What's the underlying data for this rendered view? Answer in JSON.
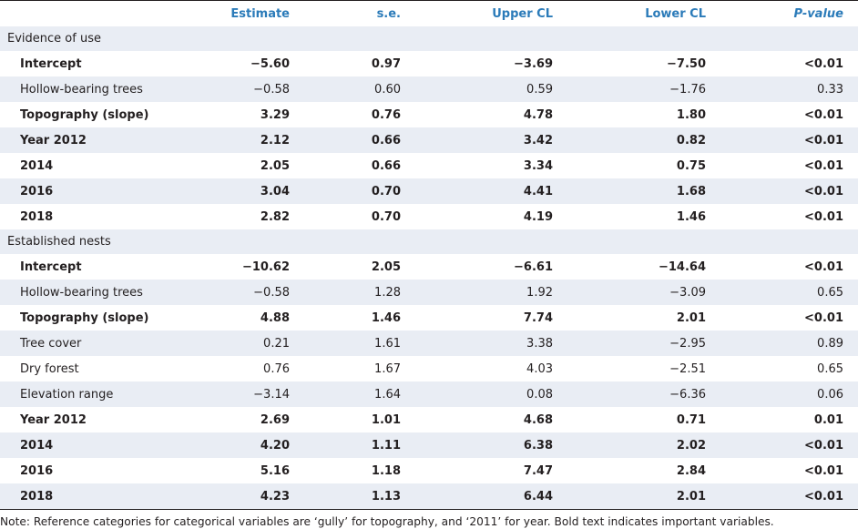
{
  "table": {
    "headers": [
      "",
      "Estimate",
      "s.e.",
      "Upper CL",
      "Lower CL",
      "P-value"
    ],
    "rows": [
      {
        "type": "section",
        "label": "Evidence of use"
      },
      {
        "type": "data",
        "bold": true,
        "shade": false,
        "cells": [
          "Intercept",
          "−5.60",
          "0.97",
          "−3.69",
          "−7.50",
          "<0.01"
        ]
      },
      {
        "type": "data",
        "bold": false,
        "shade": true,
        "cells": [
          "Hollow-bearing trees",
          "−0.58",
          "0.60",
          "0.59",
          "−1.76",
          "0.33"
        ]
      },
      {
        "type": "data",
        "bold": true,
        "shade": false,
        "cells": [
          "Topography (slope)",
          "3.29",
          "0.76",
          "4.78",
          "1.80",
          "<0.01"
        ]
      },
      {
        "type": "data",
        "bold": true,
        "shade": true,
        "cells": [
          "Year 2012",
          "2.12",
          "0.66",
          "3.42",
          "0.82",
          "<0.01"
        ]
      },
      {
        "type": "data",
        "bold": true,
        "shade": false,
        "cells": [
          "2014",
          "2.05",
          "0.66",
          "3.34",
          "0.75",
          "<0.01"
        ]
      },
      {
        "type": "data",
        "bold": true,
        "shade": true,
        "cells": [
          "2016",
          "3.04",
          "0.70",
          "4.41",
          "1.68",
          "<0.01"
        ]
      },
      {
        "type": "data",
        "bold": true,
        "shade": false,
        "cells": [
          "2018",
          "2.82",
          "0.70",
          "4.19",
          "1.46",
          "<0.01"
        ]
      },
      {
        "type": "section",
        "label": "Established nests"
      },
      {
        "type": "data",
        "bold": true,
        "shade": false,
        "cells": [
          "Intercept",
          "−10.62",
          "2.05",
          "−6.61",
          "−14.64",
          "<0.01"
        ]
      },
      {
        "type": "data",
        "bold": false,
        "shade": true,
        "cells": [
          "Hollow-bearing trees",
          "−0.58",
          "1.28",
          "1.92",
          "−3.09",
          "0.65"
        ]
      },
      {
        "type": "data",
        "bold": true,
        "shade": false,
        "cells": [
          "Topography (slope)",
          "4.88",
          "1.46",
          "7.74",
          "2.01",
          "<0.01"
        ]
      },
      {
        "type": "data",
        "bold": false,
        "shade": true,
        "cells": [
          "Tree cover",
          "0.21",
          "1.61",
          "3.38",
          "−2.95",
          "0.89"
        ]
      },
      {
        "type": "data",
        "bold": false,
        "shade": false,
        "cells": [
          "Dry forest",
          "0.76",
          "1.67",
          "4.03",
          "−2.51",
          "0.65"
        ]
      },
      {
        "type": "data",
        "bold": false,
        "shade": true,
        "cells": [
          "Elevation range",
          "−3.14",
          "1.64",
          "0.08",
          "−6.36",
          "0.06"
        ]
      },
      {
        "type": "data",
        "bold": true,
        "shade": false,
        "cells": [
          "Year 2012",
          "2.69",
          "1.01",
          "4.68",
          "0.71",
          "0.01"
        ]
      },
      {
        "type": "data",
        "bold": true,
        "shade": true,
        "cells": [
          "2014",
          "4.20",
          "1.11",
          "6.38",
          "2.02",
          "<0.01"
        ]
      },
      {
        "type": "data",
        "bold": true,
        "shade": false,
        "cells": [
          "2016",
          "5.16",
          "1.18",
          "7.47",
          "2.84",
          "<0.01"
        ]
      },
      {
        "type": "data",
        "bold": true,
        "shade": true,
        "cells": [
          "2018",
          "4.23",
          "1.13",
          "6.44",
          "2.01",
          "<0.01"
        ]
      }
    ]
  },
  "note": "Note: Reference categories for categorical variables are ‘gully’ for topography, and ‘2011’ for year. Bold text indicates important variables.",
  "colors": {
    "header_text": "#2b7bb9",
    "shade": "#e9edf4",
    "text": "#231f20"
  }
}
